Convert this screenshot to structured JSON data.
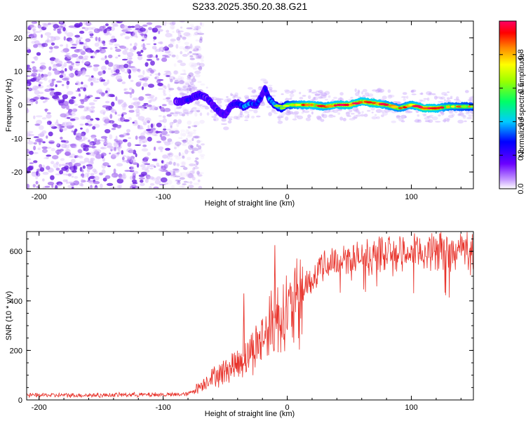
{
  "figure_title": "S233.2025.350.20.38.G21",
  "colors": {
    "snr_line": "#e8322a",
    "noise_dots": "#8a2be2",
    "frame": "#000000"
  },
  "chart_data": [
    {
      "type": "heatmap",
      "title": "S233.2025.350.20.38.G21",
      "xlabel": "Height of straight line (km)",
      "ylabel": "Frequency (Hz)",
      "xlim": [
        -210,
        150
      ],
      "ylim": [
        -25,
        25
      ],
      "xticks": [
        -200,
        -100,
        0,
        100
      ],
      "xtick_labels": [
        "-200",
        "-100",
        "0",
        "100"
      ],
      "yticks": [
        -20,
        -10,
        0,
        10,
        20
      ],
      "ytick_labels": [
        "-20",
        "-10",
        "0",
        "10",
        "20"
      ],
      "colorbar": {
        "label": "Normalized spectral amplitude",
        "range": [
          0,
          1
        ],
        "ticks": [
          0,
          0.2,
          0.4,
          0.6,
          0.8
        ],
        "tick_labels": [
          "0.0",
          "0.2",
          "0.4",
          "0.6",
          "0.8"
        ]
      },
      "noise_region_x": [
        -210,
        -80
      ],
      "ridge": {
        "x": [
          -90,
          -85,
          -80,
          -75,
          -70,
          -65,
          -60,
          -55,
          -50,
          -45,
          -40,
          -35,
          -30,
          -25,
          -20,
          -18,
          -15,
          -10,
          -5,
          0,
          10,
          20,
          30,
          40,
          50,
          60,
          70,
          80,
          90,
          100,
          110,
          120,
          130,
          140,
          150
        ],
        "freq": [
          1,
          1,
          1.5,
          2.5,
          3,
          2,
          0,
          -2,
          -3,
          0,
          0.5,
          -0.5,
          0.5,
          0,
          3,
          5,
          2,
          0,
          -1,
          0,
          0,
          0,
          -0.5,
          0,
          0,
          1,
          0.5,
          0,
          -1,
          0,
          -1,
          -1,
          -0.5,
          -0.5,
          -0.5
        ],
        "amplitude": [
          0.2,
          0.3,
          0.35,
          0.3,
          0.3,
          0.25,
          0.3,
          0.3,
          0.2,
          0.35,
          0.4,
          0.5,
          0.45,
          0.4,
          0.35,
          0.3,
          0.5,
          0.55,
          0.6,
          0.7,
          0.85,
          0.9,
          0.85,
          0.9,
          0.95,
          0.9,
          0.95,
          0.85,
          0.8,
          0.85,
          0.95,
          0.9,
          0.8,
          0.75,
          0.7
        ]
      }
    },
    {
      "type": "line",
      "xlabel": "Height of straight line (km)",
      "ylabel": "SNR (10 * v/v)",
      "xlim": [
        -210,
        150
      ],
      "ylim": [
        0,
        680
      ],
      "xticks": [
        -200,
        -100,
        0,
        100
      ],
      "xtick_labels": [
        "-200",
        "-100",
        "0",
        "100"
      ],
      "yticks": [
        0,
        200,
        400,
        600
      ],
      "ytick_labels": [
        "0",
        "200",
        "400",
        "600"
      ],
      "series": [
        {
          "name": "SNR",
          "x": [
            -210,
            -190,
            -170,
            -150,
            -130,
            -110,
            -90,
            -80,
            -75,
            -70,
            -65,
            -60,
            -55,
            -50,
            -45,
            -40,
            -35,
            -30,
            -25,
            -20,
            -15,
            -10,
            -5,
            0,
            5,
            10,
            15,
            20,
            25,
            30,
            35,
            40,
            50,
            60,
            70,
            80,
            90,
            100,
            110,
            120,
            130,
            140,
            150
          ],
          "y": [
            20,
            20,
            20,
            20,
            22,
            22,
            22,
            25,
            40,
            60,
            80,
            100,
            110,
            125,
            140,
            150,
            175,
            200,
            230,
            260,
            300,
            330,
            360,
            380,
            390,
            420,
            480,
            510,
            530,
            550,
            560,
            570,
            575,
            580,
            590,
            595,
            600,
            600,
            605,
            610,
            610,
            615,
            610
          ],
          "spikes": [
            {
              "x": -35,
              "y": 430
            },
            {
              "x": -10,
              "y": 625
            }
          ]
        }
      ]
    }
  ]
}
